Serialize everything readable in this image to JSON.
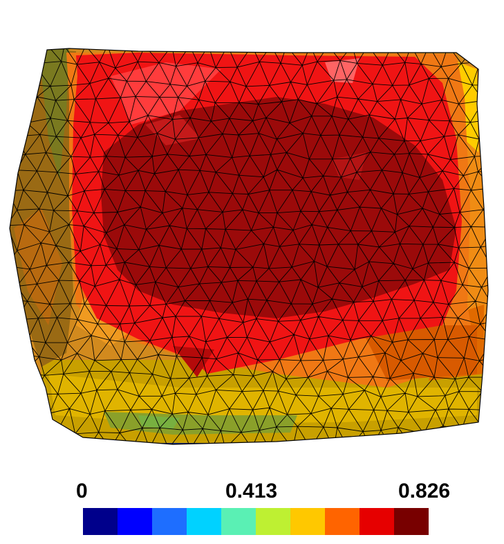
{
  "colorbar": {
    "min_label": "0",
    "mid_label": "0.413",
    "max_label": "0.826",
    "colors": [
      "#00008b",
      "#0000ff",
      "#1e6eff",
      "#00d2ff",
      "#5af0b4",
      "#bef032",
      "#ffc800",
      "#ff6400",
      "#e60000",
      "#780000"
    ]
  }
}
